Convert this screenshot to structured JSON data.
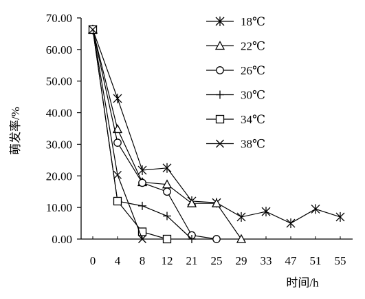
{
  "chart_data": {
    "type": "line",
    "title": "",
    "xlabel": "时间/h",
    "ylabel": "萌发率/%",
    "categories": [
      "0",
      "4",
      "8",
      "12",
      "21",
      "25",
      "29",
      "33",
      "47",
      "51",
      "55"
    ],
    "ylim": [
      0,
      70
    ],
    "yticks": [
      "0.00",
      "10.00",
      "20.00",
      "30.00",
      "40.00",
      "50.00",
      "60.00",
      "70.00"
    ],
    "grid": false,
    "legend_position": "top-right",
    "series": [
      {
        "name": "18℃",
        "marker": "asterisk",
        "values": [
          66.3,
          44.5,
          21.8,
          22.5,
          12.0,
          11.5,
          7.0,
          8.7,
          5.0,
          9.5,
          7.0
        ]
      },
      {
        "name": "22℃",
        "marker": "triangle",
        "values": [
          66.3,
          34.8,
          18.0,
          17.3,
          11.3,
          11.3,
          0.0,
          null,
          null,
          null,
          null
        ]
      },
      {
        "name": "26℃",
        "marker": "circle",
        "values": [
          66.3,
          30.5,
          17.8,
          15.0,
          1.2,
          0.0,
          null,
          null,
          null,
          null,
          null
        ]
      },
      {
        "name": "30℃",
        "marker": "plus",
        "values": [
          66.3,
          12.0,
          10.5,
          7.3,
          0.0,
          null,
          null,
          null,
          null,
          null,
          null
        ]
      },
      {
        "name": "34℃",
        "marker": "square",
        "values": [
          66.3,
          12.0,
          2.3,
          0.0,
          null,
          null,
          null,
          null,
          null,
          null,
          null
        ]
      },
      {
        "name": "38℃",
        "marker": "x",
        "values": [
          66.3,
          20.3,
          0.0,
          null,
          null,
          null,
          null,
          null,
          null,
          null,
          null
        ]
      }
    ]
  }
}
